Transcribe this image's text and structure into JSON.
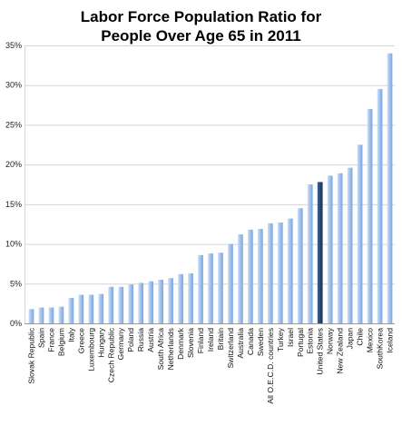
{
  "chart_data": {
    "type": "bar",
    "title": [
      "Labor Force Population Ratio for",
      "People Over Age 65 in 2011"
    ],
    "categories": [
      "Slovak Republic",
      "Spain",
      "France",
      "Belgium",
      "Italy",
      "Greece",
      "Luxembourg",
      "Hungary",
      "Czech Republic",
      "Germany",
      "Poland",
      "Russia",
      "Austria",
      "South Africa",
      "Netherlands",
      "Denmark",
      "Slovenia",
      "Finland",
      "Ireland",
      "Britain",
      "Switzerland",
      "Australia",
      "Canada",
      "Sweden",
      "All O.E.C.D. countries",
      "Turkey",
      "Israel",
      "Portugal",
      "Estonia",
      "United States",
      "Norway",
      "New Zealand",
      "Japan",
      "Chile",
      "Mexico",
      "SouthKorea",
      "Iceland"
    ],
    "values": [
      1.8,
      2.0,
      2.0,
      2.1,
      3.2,
      3.6,
      3.6,
      3.7,
      4.6,
      4.6,
      4.9,
      5.1,
      5.3,
      5.5,
      5.7,
      6.2,
      6.3,
      8.6,
      8.8,
      8.9,
      10.0,
      11.2,
      11.8,
      11.9,
      12.6,
      12.7,
      13.2,
      14.5,
      17.5,
      17.8,
      18.6,
      18.9,
      19.6,
      22.5,
      27.0,
      29.5,
      34.0
    ],
    "highlight": "United States",
    "ylim": [
      0,
      35
    ],
    "yticks": [
      "0%",
      "5%",
      "10%",
      "15%",
      "20%",
      "25%",
      "30%",
      "35%"
    ],
    "ytick_values": [
      0,
      5,
      10,
      15,
      20,
      25,
      30,
      35
    ],
    "grid": true,
    "xlabel": "",
    "ylabel": "",
    "colors": {
      "bar_light": "#cfe0f7",
      "bar_mid": "#9fc0ec",
      "bar_dark": "#7aa6e0",
      "highlight_light": "#3f5f8e",
      "highlight_dark": "#1c3252",
      "grid": "#d6d6d6",
      "axis": "#9a9a9a"
    }
  }
}
